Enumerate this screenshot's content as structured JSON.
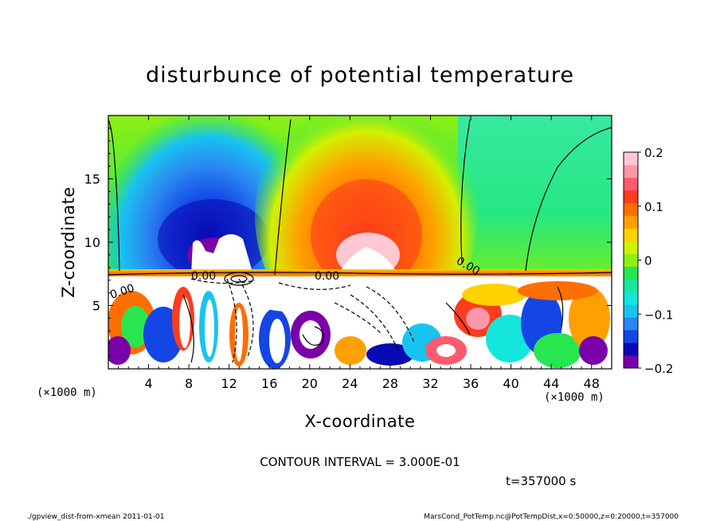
{
  "chart_data": {
    "type": "heatmap",
    "title": "disturbunce of potential temperature",
    "xlabel": "X-coordinate",
    "ylabel": "Z-coordinate",
    "x_units": "(×1000 m)",
    "y_units": "(×1000 m)",
    "xlim": [
      0,
      50
    ],
    "ylim": [
      0,
      20
    ],
    "x_ticks": [
      4,
      8,
      12,
      16,
      20,
      24,
      28,
      32,
      36,
      40,
      44,
      48
    ],
    "x_tick_labels": [
      "4",
      "8",
      "12",
      "16",
      "20",
      "24",
      "28",
      "32",
      "36",
      "40",
      "44",
      "48"
    ],
    "y_ticks": [
      5,
      10,
      15
    ],
    "y_tick_labels": [
      "5",
      "10",
      "15"
    ],
    "colorbar": {
      "range": [
        -0.2,
        0.2
      ],
      "ticks": [
        0.2,
        0.1,
        0,
        -0.1,
        -0.2
      ],
      "tick_labels": [
        "0.2",
        "0.1",
        "0",
        "−0.1",
        "−0.2"
      ],
      "colors": [
        "#7a00a8",
        "#0a0ab4",
        "#1446e6",
        "#2a86f0",
        "#19c3f0",
        "#14e6dc",
        "#19e6a0",
        "#28e650",
        "#8cf014",
        "#d2f000",
        "#ffd200",
        "#ffa000",
        "#ff6e00",
        "#ff3c1e",
        "#ff5a6e",
        "#ff96aa",
        "#ffc8d2"
      ]
    },
    "contour_interval_text": "CONTOUR INTERVAL = 3.000E-01",
    "contour_label": "0.00",
    "time_text": "t=357000 s",
    "field_summary": {
      "upper_negative_plume_x": [
        2,
        16
      ],
      "upper_positive_plume_x": [
        18,
        33
      ],
      "interface_height": 7.5,
      "min_value": -0.2,
      "max_value": 0.2
    }
  },
  "footer": {
    "left": "./gpview_dist-from-xmean  2011-01-01",
    "right": "MarsCond_PotTemp.nc@PotTempDist,x=0:50000,z=0:20000,t=357000"
  }
}
